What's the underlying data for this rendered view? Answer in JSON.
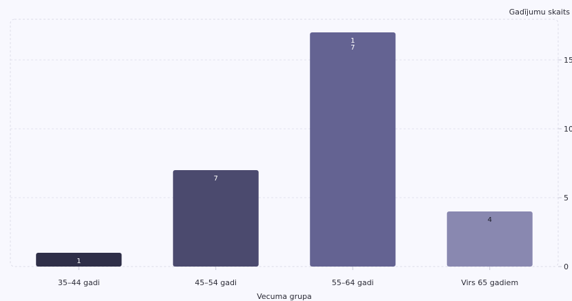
{
  "chart_data": {
    "type": "bar",
    "categories": [
      "35–44 gadi",
      "45–54 gadi",
      "55–64 gadi",
      "Virs 65 gadiem"
    ],
    "values": [
      1,
      7,
      17,
      4
    ],
    "value_labels": [
      "1",
      "7",
      "1\n7",
      "4"
    ],
    "xlabel": "Vecuma grupa",
    "ylabel": "Gadījumu skaits",
    "ylim": [
      0,
      18
    ],
    "yticks": [
      0,
      5,
      10,
      15
    ],
    "y_axis_side": "right",
    "grid": true,
    "colors": [
      "#2f2f48",
      "#4b4a6e",
      "#646392",
      "#8988b0"
    ],
    "label_colors": [
      "#ffffff",
      "#ffffff",
      "#ffffff",
      "#1a1a26"
    ]
  }
}
